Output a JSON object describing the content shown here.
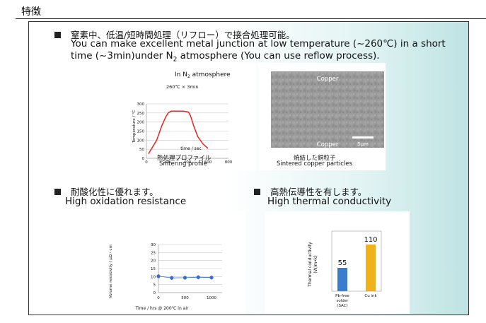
{
  "header": {
    "title": "特徴"
  },
  "feature1": {
    "jp": "窒素中、低温/短時間処理（リフロー）で接合処理可能。",
    "en_line1": "You can make excellent metal junction at low temperature (~260℃) in a short",
    "en_line2_a": "time (~3min)under N",
    "en_line2_sub": "2",
    "en_line2_b": " atmosphere (You can use reflow process)."
  },
  "profile_chart": {
    "title_a": "In N",
    "title_sub": "2",
    "title_b": " atmosphere",
    "annotation": "260℃ × 3min",
    "ylabel": "Temperature / ℃",
    "xlabel": "time / sec",
    "caption_jp": "熱処理プロファイル",
    "caption_en": "Sintering profile"
  },
  "micrograph": {
    "label_top": "Copper",
    "label_bottom": "Copper",
    "scale_label": "5μm",
    "caption_jp": "焼結した銅粒子",
    "caption_en": "Sintered copper particles",
    "bg_color": "#9a9a9a"
  },
  "feature2": {
    "jp": "耐酸化性に優れます。",
    "en": "High oxidation resistance"
  },
  "resistivity_chart": {
    "ylabel": "Volume resistivity / μΩ・cm",
    "xlabel": "Time / hrs @ 200℃ in air"
  },
  "feature3": {
    "jp": "高熱伝導性を有します。",
    "en": "High thermal conductivity"
  },
  "conductivity_chart": {
    "ylabel_1": "Thermal conductivity",
    "ylabel_2": "(W/m•k)",
    "bar1_label_1": "Pb-free",
    "bar1_label_2": "solder",
    "bar1_label_3": "(SAC)",
    "bar2_label": "Cu ink"
  },
  "chart_data": [
    {
      "type": "line",
      "title": "In N2 atmosphere",
      "xlabel": "time / sec",
      "ylabel": "Temperature / ℃",
      "xlim": [
        0,
        800
      ],
      "ylim": [
        0,
        300
      ],
      "x_ticks": [
        0,
        200,
        400,
        600,
        800
      ],
      "y_ticks": [
        0,
        50,
        100,
        150,
        200,
        250,
        300
      ],
      "grid": true,
      "series": [
        {
          "color": "#e8231f",
          "x": [
            20,
            100,
            150,
            190,
            215,
            240,
            300,
            360,
            410,
            430,
            460,
            500,
            550,
            600
          ],
          "y": [
            25,
            100,
            180,
            230,
            252,
            260,
            260,
            260,
            255,
            235,
            180,
            120,
            80,
            55
          ]
        }
      ]
    },
    {
      "type": "scatter",
      "xlabel": "Time / hrs @ 200℃ in air",
      "ylabel": "Volume resistivity / μΩ・cm",
      "xlim": [
        0,
        1200
      ],
      "ylim": [
        0,
        30
      ],
      "x_ticks": [
        0,
        500,
        1000
      ],
      "y_ticks": [
        0,
        5,
        10,
        15,
        20,
        25,
        30
      ],
      "grid": true,
      "series": [
        {
          "color": "#3a6cc8",
          "x": [
            0,
            250,
            500,
            750,
            1000
          ],
          "y": [
            10.2,
            9.2,
            9.3,
            9.6,
            9.4
          ]
        }
      ]
    },
    {
      "type": "bar",
      "ylabel": "Thermal conductivity (W/m•k)",
      "categories": [
        "Pb-free solder (SAC)",
        "Cu ink"
      ],
      "values": [
        55,
        110
      ],
      "colors": [
        "#3b7ccf",
        "#f0b21a"
      ],
      "ylim": [
        0,
        130
      ]
    }
  ]
}
